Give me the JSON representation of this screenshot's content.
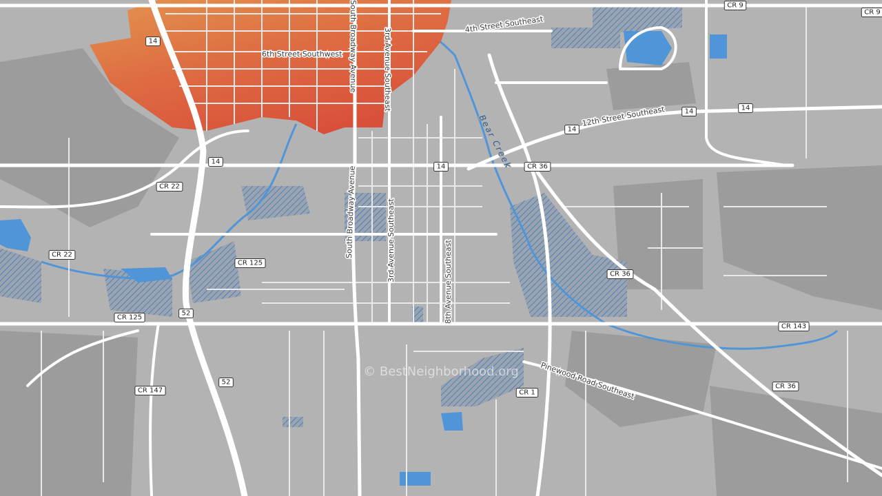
{
  "map": {
    "streets": [
      "6th Street Southwest",
      "4th Street Southeast",
      "12th Street Southeast",
      "South Broadway Avenue",
      "3rd Avenue Southeast",
      "South Broadway Avenue",
      "3rd Avenue Southeast",
      "8th Avenue Southeast",
      "Pinewood Road Southeast"
    ],
    "water": [
      "Bear Creek"
    ],
    "shields": [
      "CR 9",
      "CR 9",
      "14",
      "14",
      "14",
      "14",
      "14",
      "14",
      "CR 36",
      "CR 36",
      "CR 36",
      "CR 22",
      "CR 22",
      "CR 125",
      "CR 125",
      "52",
      "52",
      "CR 147",
      "CR 1",
      "CR 143"
    ],
    "watermark": "© BestNeighborhood.org"
  }
}
